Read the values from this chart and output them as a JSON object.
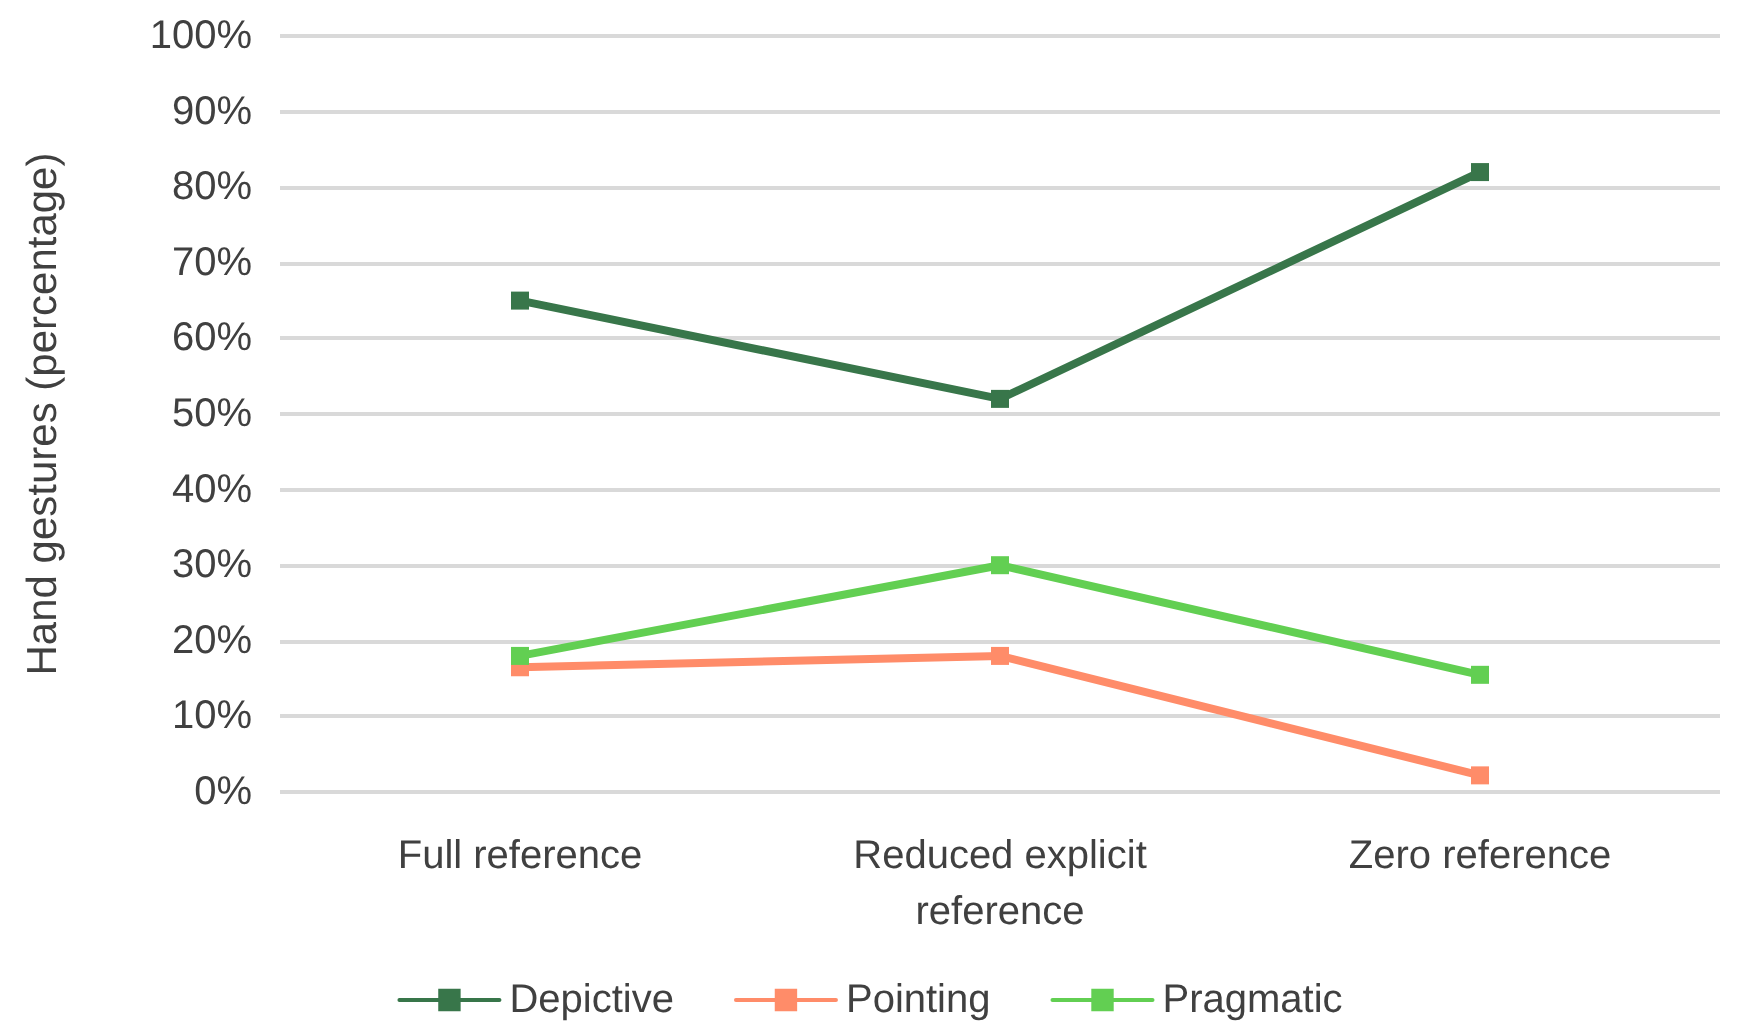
{
  "chart_data": {
    "type": "line",
    "ylabel": "Hand gestures (percentage)",
    "categories": [
      "Full reference",
      "Reduced explicit\nreference",
      "Zero reference"
    ],
    "series": [
      {
        "name": "Depictive",
        "color": "#38764a",
        "values": [
          65,
          52,
          82
        ]
      },
      {
        "name": "Pointing",
        "color": "#ff8c69",
        "values": [
          16.5,
          18,
          2.2
        ]
      },
      {
        "name": "Pragmatic",
        "color": "#62cf52",
        "values": [
          18,
          30,
          15.5
        ]
      }
    ],
    "ylim": [
      0,
      100
    ],
    "yticks": [
      {
        "value": 0,
        "label": "0%"
      },
      {
        "value": 10,
        "label": "10%"
      },
      {
        "value": 20,
        "label": "20%"
      },
      {
        "value": 30,
        "label": "30%"
      },
      {
        "value": 40,
        "label": "40%"
      },
      {
        "value": 50,
        "label": "50%"
      },
      {
        "value": 60,
        "label": "60%"
      },
      {
        "value": 70,
        "label": "70%"
      },
      {
        "value": 80,
        "label": "80%"
      },
      {
        "value": 90,
        "label": "90%"
      },
      {
        "value": 100,
        "label": "100%"
      }
    ],
    "grid": "y",
    "legend": "bottom",
    "marker": "square",
    "line_style": "solid"
  }
}
